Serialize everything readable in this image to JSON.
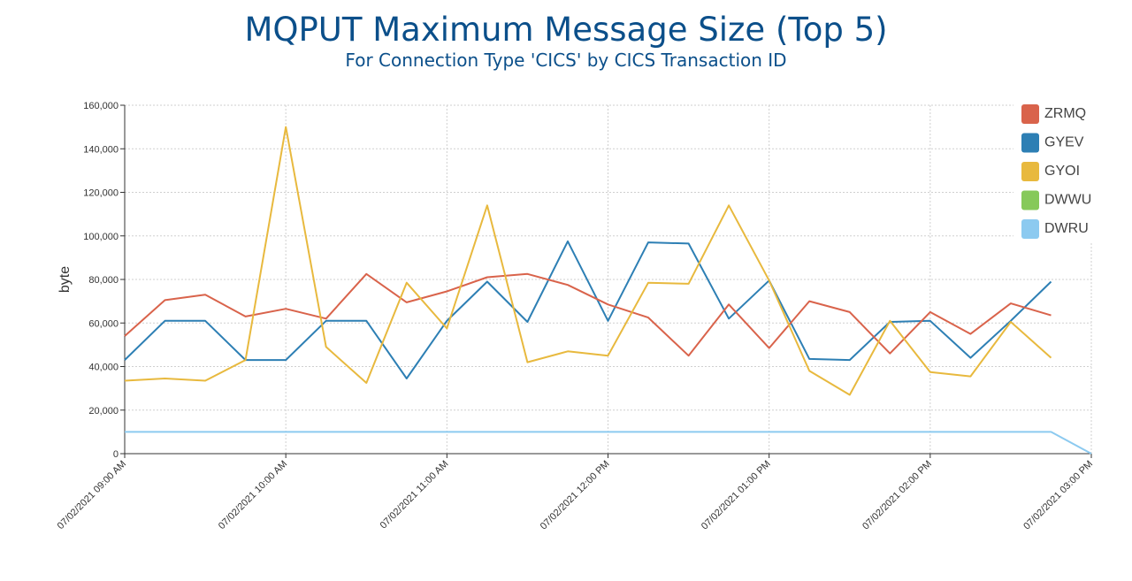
{
  "chart_data": {
    "type": "line",
    "title": "MQPUT Maximum Message Size (Top 5)",
    "subtitle": "For Connection Type 'CICS' by CICS Transaction ID",
    "ylabel": "byte",
    "xlabel": "",
    "ylim": [
      0,
      160000
    ],
    "yticks": [
      0,
      20000,
      40000,
      60000,
      80000,
      100000,
      120000,
      140000,
      160000
    ],
    "ytick_labels": [
      "0",
      "20,000",
      "40,000",
      "60,000",
      "80,000",
      "100,000",
      "120,000",
      "140,000",
      "160,000"
    ],
    "xlim": [
      "07/02/2021 09:00 AM",
      "07/02/2021 03:00 PM"
    ],
    "x_interval_minutes": 15,
    "xtick_labels": [
      "07/02/2021 09:00 AM",
      "07/02/2021 10:00 AM",
      "07/02/2021 11:00 AM",
      "07/02/2021 12:00 PM",
      "07/02/2021 01:00 PM",
      "07/02/2021 02:00 PM",
      "07/02/2021 03:00 PM"
    ],
    "grid": true,
    "legend_position": "top-right",
    "series": [
      {
        "name": "ZRMQ",
        "color": "#d9634b",
        "values": [
          54000,
          70500,
          73000,
          63000,
          66500,
          62000,
          82500,
          69500,
          74500,
          81000,
          82500,
          77500,
          68500,
          62500,
          45000,
          68500,
          48500,
          70000,
          65000,
          46000,
          65000,
          55000,
          69000,
          63500
        ]
      },
      {
        "name": "GYEV",
        "color": "#2d7fb4",
        "values": [
          43000,
          61000,
          61000,
          43000,
          43000,
          61000,
          61000,
          34500,
          61000,
          79000,
          60500,
          97500,
          61000,
          97000,
          96500,
          62000,
          79500,
          43500,
          43000,
          60500,
          61000,
          44000,
          61000,
          79000
        ]
      },
      {
        "name": "GYOI",
        "color": "#e8b93e",
        "values": [
          33500,
          34500,
          33500,
          43000,
          150000,
          49000,
          32500,
          78500,
          57500,
          114000,
          42000,
          47000,
          45000,
          78500,
          78000,
          114000,
          79500,
          38000,
          27000,
          61000,
          37500,
          35500,
          60500,
          44000
        ]
      },
      {
        "name": "DWWU",
        "color": "#86c95a",
        "values": []
      },
      {
        "name": "DWRU",
        "color": "#8ccaf0",
        "values": [
          10000,
          10000,
          10000,
          10000,
          10000,
          10000,
          10000,
          10000,
          10000,
          10000,
          10000,
          10000,
          10000,
          10000,
          10000,
          10000,
          10000,
          10000,
          10000,
          10000,
          10000,
          10000,
          10000,
          10000,
          0
        ]
      }
    ]
  }
}
